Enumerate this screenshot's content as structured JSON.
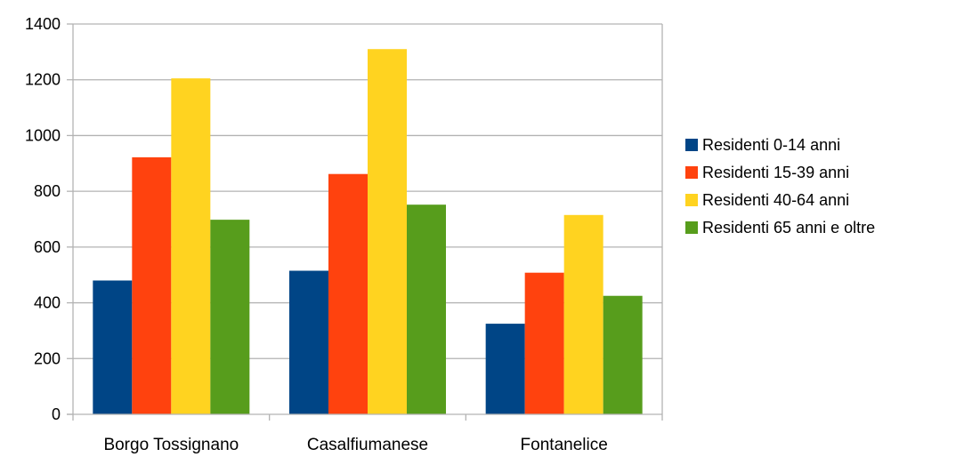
{
  "chart_data": {
    "type": "bar",
    "categories": [
      "Borgo Tossignano",
      "Casalfiumanese",
      "Fontanelice"
    ],
    "series": [
      {
        "name": "Residenti 0-14 anni",
        "values": [
          480,
          515,
          325
        ],
        "color": "#004586"
      },
      {
        "name": "Residenti 15-39 anni",
        "values": [
          922,
          862,
          508
        ],
        "color": "#ff420e"
      },
      {
        "name": "Residenti 40-64 anni",
        "values": [
          1205,
          1310,
          715
        ],
        "color": "#ffd320"
      },
      {
        "name": "Residenti 65 anni e oltre",
        "values": [
          698,
          752,
          425
        ],
        "color": "#579d1c"
      }
    ],
    "ylim": [
      0,
      1400
    ],
    "yticks": [
      0,
      200,
      400,
      600,
      800,
      1000,
      1200,
      1400
    ],
    "grid": true,
    "legend_position": "right"
  }
}
